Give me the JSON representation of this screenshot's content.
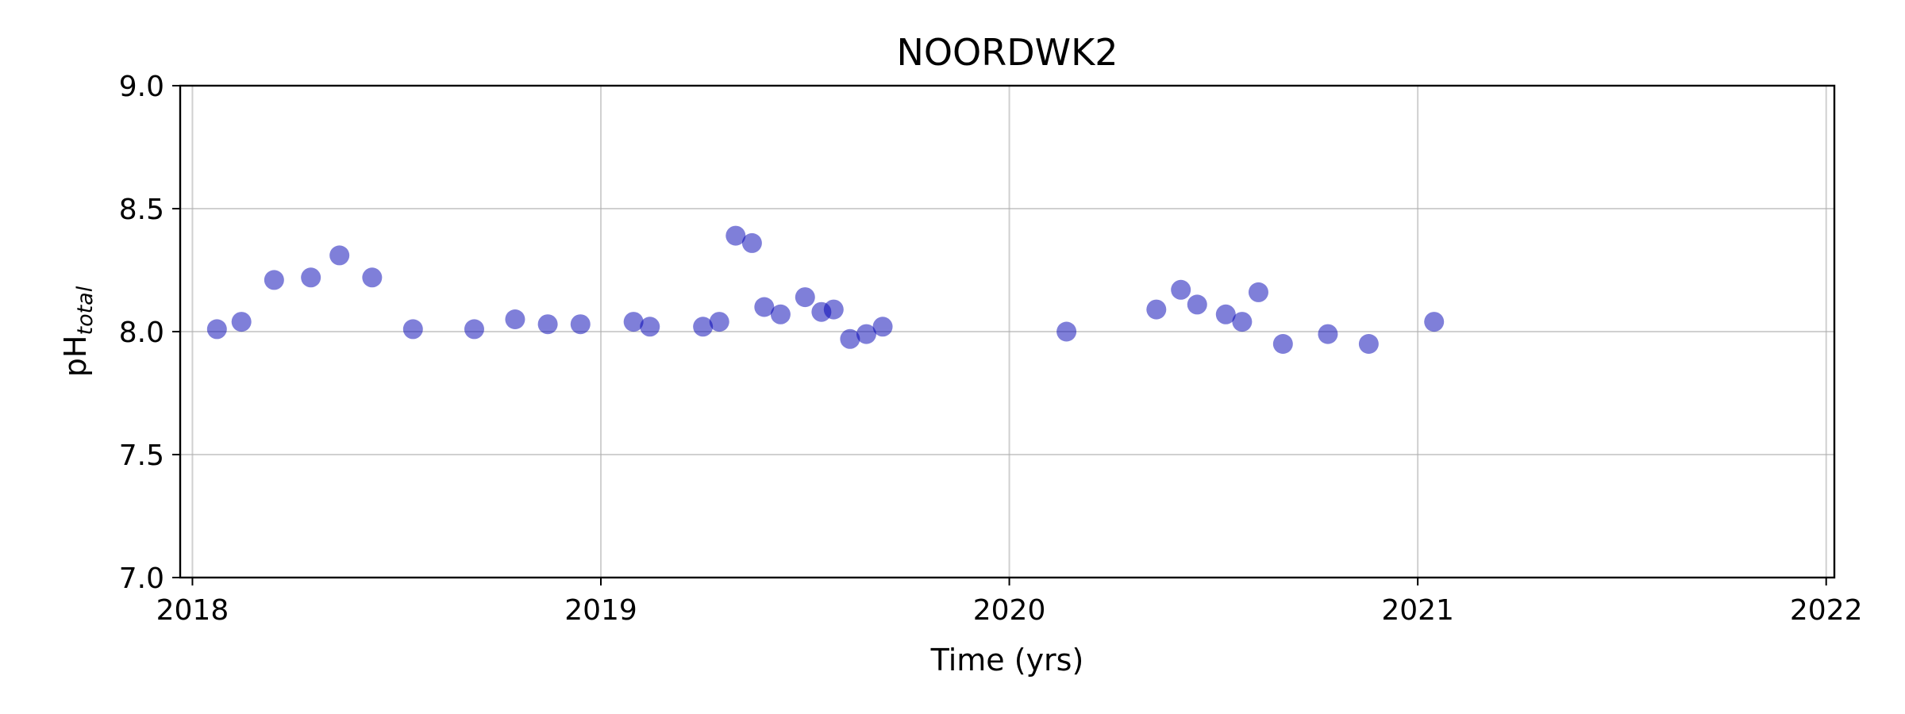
{
  "chart_data": {
    "type": "scatter",
    "title": "NOORDWK2",
    "xlabel": "Time (yrs)",
    "ylabel": "pH",
    "ylabel_subscript": "total",
    "xlim": [
      2017.97,
      2022.02
    ],
    "ylim": [
      7.0,
      9.0
    ],
    "xticks": [
      2018,
      2019,
      2020,
      2021,
      2022
    ],
    "yticks": [
      7.0,
      7.5,
      8.0,
      8.5,
      9.0
    ],
    "xtick_labels": [
      "2018",
      "2019",
      "2020",
      "2021",
      "2022"
    ],
    "ytick_labels": [
      "7.0",
      "7.5",
      "8.0",
      "8.5",
      "9.0"
    ],
    "grid": true,
    "marker_color": "#0000b4",
    "series": [
      {
        "name": "pH total",
        "x": [
          2018.06,
          2018.12,
          2018.2,
          2018.29,
          2018.36,
          2018.44,
          2018.54,
          2018.69,
          2018.79,
          2018.87,
          2018.95,
          2019.08,
          2019.12,
          2019.25,
          2019.29,
          2019.33,
          2019.37,
          2019.4,
          2019.44,
          2019.5,
          2019.54,
          2019.57,
          2019.61,
          2019.65,
          2019.69,
          2020.14,
          2020.36,
          2020.42,
          2020.46,
          2020.53,
          2020.57,
          2020.61,
          2020.67,
          2020.78,
          2020.88,
          2021.04
        ],
        "y": [
          8.01,
          8.04,
          8.21,
          8.22,
          8.31,
          8.22,
          8.01,
          8.01,
          8.05,
          8.03,
          8.03,
          8.04,
          8.02,
          8.02,
          8.04,
          8.39,
          8.36,
          8.1,
          8.07,
          8.14,
          8.08,
          8.09,
          7.97,
          7.99,
          8.02,
          8.0,
          8.09,
          8.17,
          8.11,
          8.07,
          8.04,
          8.16,
          7.95,
          7.99,
          7.95,
          8.04
        ]
      }
    ]
  }
}
